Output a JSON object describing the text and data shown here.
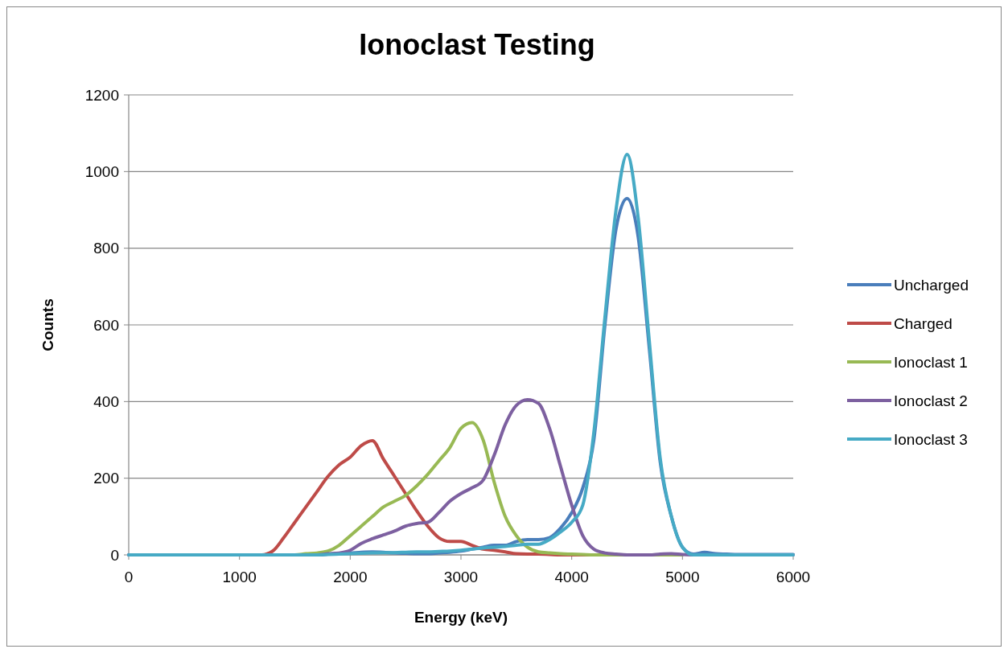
{
  "chart_data": {
    "type": "line",
    "title": "Ionoclast Testing",
    "xlabel": "Energy (keV)",
    "ylabel": "Counts",
    "x": [
      0,
      500,
      1000,
      1200,
      1300,
      1400,
      1500,
      1600,
      1700,
      1800,
      1900,
      2000,
      2100,
      2200,
      2300,
      2400,
      2500,
      2600,
      2700,
      2800,
      2900,
      3000,
      3100,
      3200,
      3300,
      3400,
      3500,
      3600,
      3700,
      3800,
      3900,
      4000,
      4100,
      4200,
      4300,
      4400,
      4500,
      4600,
      4700,
      4800,
      4900,
      5000,
      5100,
      5200,
      5300,
      5400,
      5500,
      6000
    ],
    "series": [
      {
        "name": "Uncharged",
        "color": "#4a7ebb",
        "values": [
          0,
          0,
          0,
          0,
          0,
          0,
          0,
          0,
          0,
          2,
          4,
          5,
          7,
          8,
          7,
          5,
          4,
          3,
          3,
          5,
          7,
          10,
          15,
          20,
          25,
          25,
          35,
          40,
          40,
          45,
          70,
          110,
          175,
          300,
          600,
          850,
          930,
          830,
          540,
          240,
          100,
          20,
          2,
          7,
          3,
          2,
          1,
          1
        ]
      },
      {
        "name": "Charged",
        "color": "#be4b48",
        "values": [
          null,
          null,
          0,
          0,
          10,
          45,
          85,
          125,
          165,
          205,
          235,
          255,
          285,
          298,
          250,
          205,
          160,
          115,
          75,
          45,
          35,
          35,
          25,
          15,
          12,
          8,
          3,
          2,
          2,
          1,
          0,
          0,
          0,
          0,
          null,
          null,
          null,
          null,
          null,
          null,
          null,
          null,
          null,
          null,
          null,
          null,
          null,
          null
        ]
      },
      {
        "name": "Ionoclast 1",
        "color": "#98b954",
        "values": [
          null,
          null,
          null,
          null,
          null,
          0,
          0,
          3,
          5,
          10,
          25,
          50,
          75,
          100,
          125,
          140,
          155,
          180,
          210,
          245,
          280,
          330,
          345,
          300,
          190,
          100,
          50,
          20,
          8,
          5,
          3,
          2,
          1,
          0,
          0,
          0,
          0,
          0,
          0,
          0,
          0,
          0,
          null,
          null,
          null,
          null,
          null,
          null
        ]
      },
      {
        "name": "Ionoclast 2",
        "color": "#7d60a0",
        "values": [
          0,
          0,
          0,
          0,
          0,
          0,
          0,
          0,
          0,
          3,
          5,
          12,
          30,
          42,
          52,
          62,
          75,
          82,
          85,
          110,
          140,
          160,
          175,
          195,
          260,
          340,
          390,
          405,
          395,
          330,
          230,
          130,
          50,
          15,
          5,
          2,
          0,
          0,
          0,
          2,
          3,
          1,
          0,
          0,
          0,
          0,
          0,
          0
        ]
      },
      {
        "name": "Ionoclast 3",
        "color": "#46aac5",
        "values": [
          0,
          0,
          0,
          0,
          0,
          0,
          0,
          0,
          0,
          1,
          2,
          3,
          4,
          5,
          6,
          6,
          7,
          8,
          8,
          9,
          10,
          12,
          15,
          18,
          20,
          22,
          25,
          28,
          28,
          40,
          60,
          85,
          130,
          320,
          620,
          900,
          1045,
          880,
          560,
          250,
          100,
          20,
          0,
          0,
          0,
          0,
          0,
          0
        ]
      }
    ],
    "xlim": [
      0,
      6000
    ],
    "ylim": [
      0,
      1200
    ],
    "xticks": [
      0,
      1000,
      2000,
      3000,
      4000,
      5000,
      6000
    ],
    "yticks": [
      0,
      200,
      400,
      600,
      800,
      1000,
      1200
    ],
    "grid": "y",
    "legend": "right",
    "marker": "none",
    "line_style": "solid"
  }
}
